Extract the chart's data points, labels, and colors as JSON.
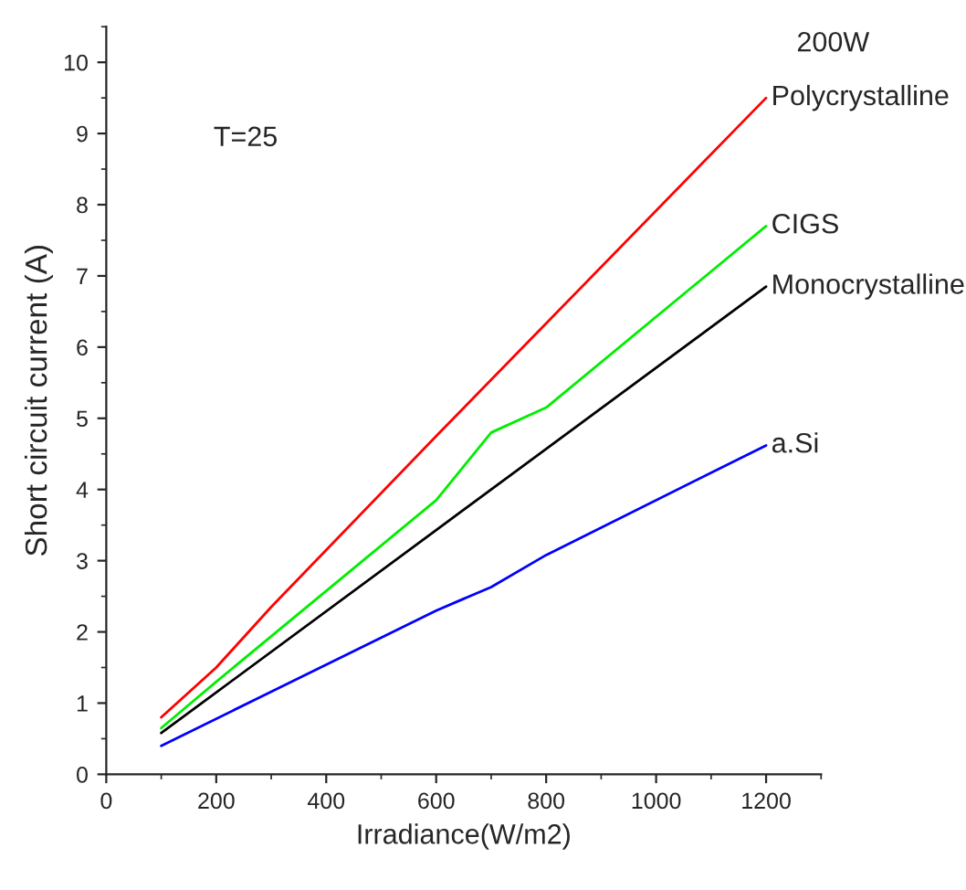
{
  "chart_data": {
    "type": "line",
    "xlabel": "Irradiance(W/m2)",
    "ylabel": "Short circuit current (A)",
    "xlim": [
      0,
      1300
    ],
    "xticks": [
      0,
      200,
      400,
      600,
      800,
      1000,
      1200
    ],
    "ylim": [
      0,
      10.5
    ],
    "yticks": [
      0,
      1,
      2,
      3,
      4,
      5,
      6,
      7,
      8,
      9,
      10
    ],
    "grid": false,
    "legend": false,
    "marker": "none",
    "line_style": "solid",
    "annotations": [
      "T=25",
      "200W"
    ],
    "series": [
      {
        "name": "Polycrystalline",
        "color": "#ff0000",
        "x": [
          100,
          200,
          300,
          600,
          1200
        ],
        "values": [
          0.8,
          1.5,
          2.35,
          4.75,
          9.5
        ]
      },
      {
        "name": "CIGS",
        "color": "#00ee00",
        "x": [
          100,
          200,
          600,
          700,
          800,
          1200
        ],
        "values": [
          0.65,
          1.3,
          3.85,
          4.8,
          5.15,
          7.7
        ]
      },
      {
        "name": "Monocrystalline",
        "color": "#000000",
        "x": [
          100,
          600,
          1200
        ],
        "values": [
          0.58,
          3.43,
          6.85
        ]
      },
      {
        "name": "a.Si",
        "color": "#0000ff",
        "x": [
          100,
          600,
          700,
          800,
          1200
        ],
        "values": [
          0.4,
          2.3,
          2.63,
          3.08,
          4.62
        ]
      }
    ]
  }
}
